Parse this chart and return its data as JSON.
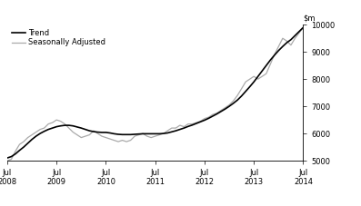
{
  "ylim": [
    5000,
    10000
  ],
  "yticks": [
    5000,
    6000,
    7000,
    8000,
    9000,
    10000
  ],
  "xlim": [
    0,
    72
  ],
  "xtick_positions": [
    0,
    12,
    24,
    36,
    48,
    60,
    72
  ],
  "xtick_labels": [
    "Jul\n2008",
    "Jul\n2009",
    "Jul\n2010",
    "Jul\n2011",
    "Jul\n2012",
    "Jul\n2013",
    "Jul\n2014"
  ],
  "legend_entries": [
    "Trend",
    "Seasonally Adjusted"
  ],
  "trend_color": "#000000",
  "seasonal_color": "#aaaaaa",
  "trend_linewidth": 1.2,
  "seasonal_linewidth": 0.9,
  "background_color": "#ffffff",
  "trend_x": [
    0,
    1,
    2,
    3,
    4,
    5,
    6,
    7,
    8,
    9,
    10,
    11,
    12,
    13,
    14,
    15,
    16,
    17,
    18,
    19,
    20,
    21,
    22,
    23,
    24,
    25,
    26,
    27,
    28,
    29,
    30,
    31,
    32,
    33,
    34,
    35,
    36,
    37,
    38,
    39,
    40,
    41,
    42,
    43,
    44,
    45,
    46,
    47,
    48,
    49,
    50,
    51,
    52,
    53,
    54,
    55,
    56,
    57,
    58,
    59,
    60,
    61,
    62,
    63,
    64,
    65,
    66,
    67,
    68,
    69,
    70,
    71,
    72
  ],
  "trend_y": [
    5100,
    5150,
    5250,
    5380,
    5500,
    5640,
    5780,
    5900,
    6000,
    6080,
    6150,
    6200,
    6250,
    6280,
    6300,
    6300,
    6280,
    6240,
    6200,
    6150,
    6100,
    6070,
    6050,
    6040,
    6040,
    6020,
    5990,
    5970,
    5960,
    5960,
    5960,
    5970,
    5980,
    5990,
    5990,
    5990,
    5990,
    5990,
    6000,
    6020,
    6060,
    6100,
    6150,
    6200,
    6260,
    6310,
    6370,
    6430,
    6490,
    6560,
    6640,
    6720,
    6810,
    6900,
    7000,
    7110,
    7230,
    7380,
    7550,
    7720,
    7900,
    8100,
    8300,
    8500,
    8700,
    8880,
    9050,
    9200,
    9340,
    9450,
    9600,
    9750,
    9900
  ],
  "seasonal_x": [
    0,
    1,
    2,
    3,
    4,
    5,
    6,
    7,
    8,
    9,
    10,
    11,
    12,
    13,
    14,
    15,
    16,
    17,
    18,
    19,
    20,
    21,
    22,
    23,
    24,
    25,
    26,
    27,
    28,
    29,
    30,
    31,
    32,
    33,
    34,
    35,
    36,
    37,
    38,
    39,
    40,
    41,
    42,
    43,
    44,
    45,
    46,
    47,
    48,
    49,
    50,
    51,
    52,
    53,
    54,
    55,
    56,
    57,
    58,
    59,
    60,
    61,
    62,
    63,
    64,
    65,
    66,
    67,
    68,
    69,
    70,
    71,
    72
  ],
  "seasonal_y": [
    5000,
    5050,
    5350,
    5600,
    5700,
    5850,
    5950,
    6050,
    6150,
    6200,
    6350,
    6400,
    6500,
    6450,
    6350,
    6200,
    6050,
    5950,
    5850,
    5900,
    5950,
    6100,
    6000,
    5900,
    5850,
    5800,
    5750,
    5700,
    5750,
    5700,
    5750,
    5900,
    5950,
    6000,
    5900,
    5850,
    5900,
    5950,
    6000,
    6100,
    6200,
    6200,
    6300,
    6250,
    6350,
    6350,
    6400,
    6450,
    6550,
    6600,
    6700,
    6750,
    6850,
    6950,
    7050,
    7200,
    7400,
    7650,
    7900,
    8000,
    8100,
    8000,
    8100,
    8200,
    8550,
    8900,
    9200,
    9500,
    9400,
    9250,
    9500,
    9700,
    9900
  ]
}
